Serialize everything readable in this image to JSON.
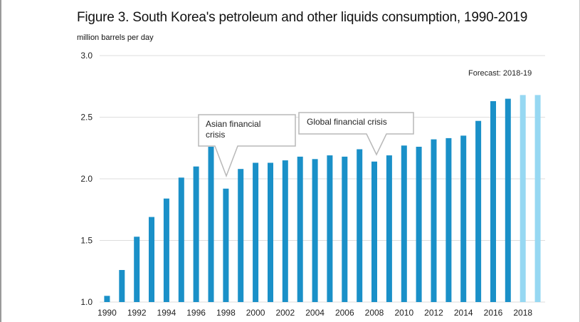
{
  "title": "Figure 3. South Korea's petroleum and other liquids consumption, 1990-2019",
  "subtitle": "million barrels  per day",
  "forecast_label": "Forecast: 2018-19",
  "annotations": {
    "asian": [
      "Asian financial",
      "crisis"
    ],
    "global": [
      "Global financial  crisis"
    ]
  },
  "colors": {
    "actual": "#1a90c8",
    "forecast": "#96d8f2",
    "grid": "#dddddd",
    "callout_border": "#b8b8b8"
  },
  "chart_data": {
    "type": "bar",
    "title": "Figure 3. South Korea's petroleum and other liquids consumption, 1990-2019",
    "ylabel": "million barrels  per day",
    "ylim": [
      1.0,
      3.0
    ],
    "yticks": [
      "1.0",
      "1.5",
      "2.0",
      "2.5",
      "3.0"
    ],
    "x_tick_labels": [
      "1990",
      "1992",
      "1994",
      "1996",
      "1998",
      "2000",
      "2002",
      "2004",
      "2006",
      "2008",
      "2010",
      "2012",
      "2014",
      "2016",
      "2018"
    ],
    "grid": true,
    "categories": [
      "1990",
      "1991",
      "1992",
      "1993",
      "1994",
      "1995",
      "1996",
      "1997",
      "1998",
      "1999",
      "2000",
      "2001",
      "2002",
      "2003",
      "2004",
      "2005",
      "2006",
      "2007",
      "2008",
      "2009",
      "2010",
      "2011",
      "2012",
      "2013",
      "2014",
      "2015",
      "2016",
      "2017",
      "2018",
      "2019"
    ],
    "values": [
      1.05,
      1.26,
      1.53,
      1.69,
      1.84,
      2.01,
      2.1,
      2.26,
      1.92,
      2.08,
      2.13,
      2.13,
      2.15,
      2.18,
      2.16,
      2.19,
      2.18,
      2.24,
      2.14,
      2.19,
      2.27,
      2.26,
      2.32,
      2.33,
      2.35,
      2.47,
      2.63,
      2.65,
      2.68,
      2.68
    ],
    "forecast_from": "2018"
  }
}
